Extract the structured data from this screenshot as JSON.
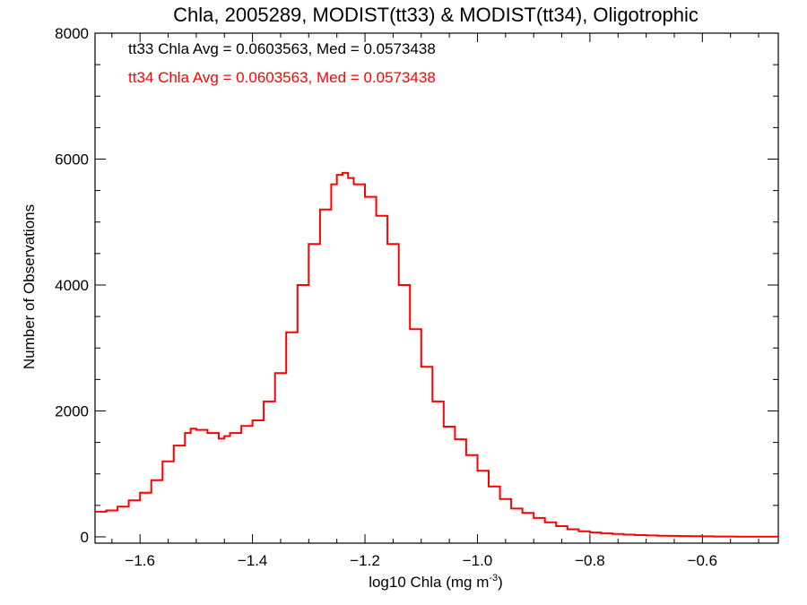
{
  "chart_data": {
    "type": "line",
    "title": "Chla, 2005289, MODIST(tt33) & MODIST(tt34), Oligotrophic",
    "xlabel": "log10 Chla (mg m",
    "xlabel_sup": "-3",
    "xlabel_end": ")",
    "ylabel": "Number of Observations",
    "xlim": [
      -1.68,
      -0.465
    ],
    "ylim": [
      -100,
      8000
    ],
    "x_ticks": [
      -1.6,
      -1.4,
      -1.2,
      -1.0,
      -0.8,
      -0.6
    ],
    "x_tick_labels": [
      "−1.6",
      "−1.4",
      "−1.2",
      "−1.0",
      "−0.8",
      "−0.6"
    ],
    "y_ticks": [
      0,
      2000,
      4000,
      6000,
      8000
    ],
    "y_tick_labels": [
      "0",
      "2000",
      "4000",
      "6000",
      "8000"
    ],
    "annotations": [
      {
        "text": "tt33 Chla Avg = 0.0603563, Med = 0.0573438",
        "color": "#000000"
      },
      {
        "text": "tt34 Chla Avg = 0.0603563, Med = 0.0573438",
        "color": "#ff0000"
      }
    ],
    "series": [
      {
        "color": "#ff0000",
        "style": "step",
        "x": [
          -1.68,
          -1.66,
          -1.64,
          -1.62,
          -1.6,
          -1.58,
          -1.56,
          -1.54,
          -1.52,
          -1.51,
          -1.5,
          -1.48,
          -1.46,
          -1.45,
          -1.44,
          -1.42,
          -1.4,
          -1.38,
          -1.36,
          -1.34,
          -1.32,
          -1.3,
          -1.28,
          -1.26,
          -1.25,
          -1.24,
          -1.23,
          -1.22,
          -1.2,
          -1.18,
          -1.16,
          -1.14,
          -1.12,
          -1.1,
          -1.08,
          -1.06,
          -1.04,
          -1.02,
          -1.0,
          -0.98,
          -0.96,
          -0.94,
          -0.92,
          -0.9,
          -0.88,
          -0.86,
          -0.84,
          -0.82,
          -0.8,
          -0.78,
          -0.76,
          -0.74,
          -0.72,
          -0.7,
          -0.68,
          -0.66,
          -0.64,
          -0.62,
          -0.6,
          -0.58,
          -0.56,
          -0.54,
          -0.52,
          -0.5,
          -0.48,
          -0.465
        ],
        "y": [
          400,
          420,
          480,
          580,
          700,
          900,
          1200,
          1450,
          1650,
          1720,
          1700,
          1650,
          1560,
          1600,
          1650,
          1760,
          1850,
          2150,
          2600,
          3250,
          4000,
          4650,
          5200,
          5600,
          5750,
          5780,
          5700,
          5600,
          5400,
          5100,
          4650,
          4000,
          3300,
          2700,
          2150,
          1750,
          1550,
          1300,
          1050,
          800,
          600,
          450,
          380,
          300,
          230,
          170,
          120,
          90,
          70,
          55,
          45,
          35,
          28,
          22,
          18,
          15,
          12,
          10,
          8,
          6,
          5,
          4,
          3,
          2,
          2,
          2
        ]
      }
    ]
  }
}
